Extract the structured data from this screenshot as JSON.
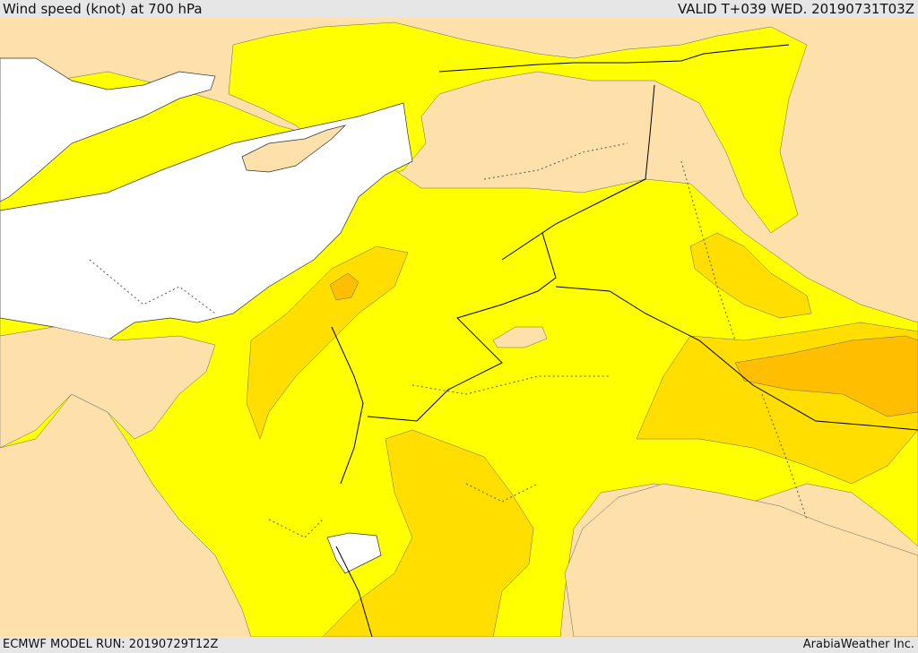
{
  "header": {
    "title": "Wind speed (knot) at 700 hPa",
    "valid_time": "VALID T+039 WED. 20190731T03Z"
  },
  "footer": {
    "model_run": "ECMWF MODEL RUN: 20190729T12Z",
    "credit": "ArabiaWeather Inc."
  },
  "colors": {
    "land_calm": "#fde0aa",
    "sea": "#ffffff",
    "band_yellow": "#ffff00",
    "band_gold": "#ffde00",
    "band_amber": "#ffbe00",
    "border": "#000000",
    "admin_border": "#555555"
  }
}
